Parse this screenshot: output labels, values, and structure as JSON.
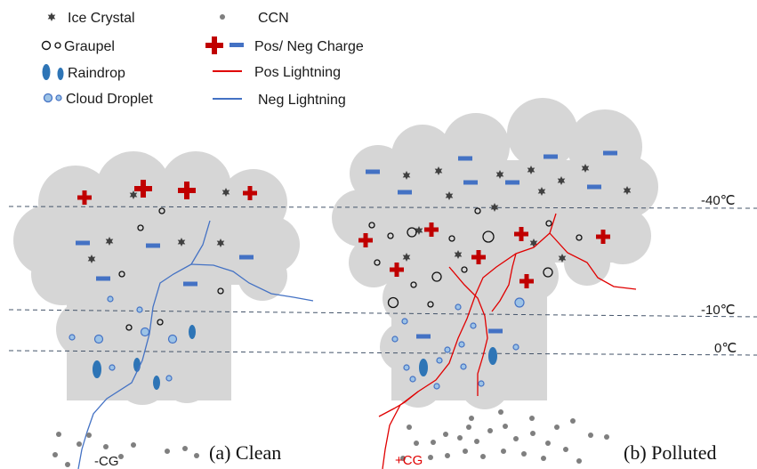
{
  "legend": {
    "ice_crystal": "Ice Crystal",
    "graupel": "Graupel",
    "raindrop": "Raindrop",
    "cloud_droplet": "Cloud Droplet",
    "ccn": "CCN",
    "charge": "Pos/ Neg Charge",
    "pos_lightning": "Pos Lightning",
    "neg_lightning": "Neg Lightning"
  },
  "isotherms": {
    "t40": "-40℃",
    "t10": "-10℃",
    "t0": "0℃"
  },
  "panels": {
    "clean": {
      "caption": "(a) Clean",
      "strike_label": "-CG"
    },
    "polluted": {
      "caption": "(b) Polluted",
      "strike_label": "+CG"
    }
  },
  "colors": {
    "cloud": "#d6d6d6",
    "positive": "#c00000",
    "negative": "#4472c4",
    "ice": "#404040",
    "ccn": "#7f7f7f",
    "droplet_fill": "#9dc3e6",
    "droplet_stroke": "#4472c4",
    "raindrop": "#2e75b6",
    "pos_lightning": "#e00000",
    "neg_lightning": "#4472c4"
  }
}
